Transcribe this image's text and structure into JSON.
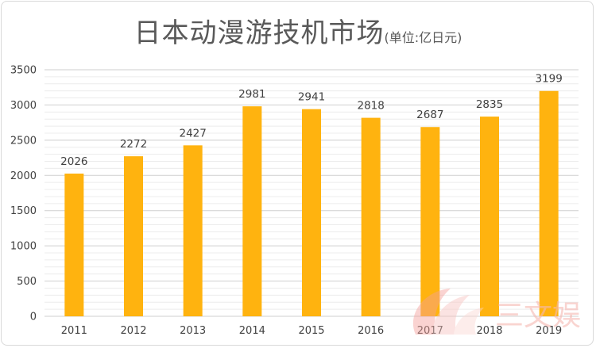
{
  "chart_data": {
    "type": "bar",
    "title": "日本动漫游技机市场",
    "unit_label": "(单位:亿日元)",
    "categories": [
      "2011",
      "2012",
      "2013",
      "2014",
      "2015",
      "2016",
      "2017",
      "2018",
      "2019"
    ],
    "values": [
      2026,
      2272,
      2427,
      2981,
      2941,
      2818,
      2687,
      2835,
      3199
    ],
    "data_labels": [
      "2026",
      "2272",
      "2427",
      "2981",
      "2941",
      "2818",
      "2687",
      "2835",
      "3199"
    ],
    "ylim": [
      0,
      3500
    ],
    "yticks": [
      0,
      500,
      1000,
      1500,
      2000,
      2500,
      3000,
      3500
    ],
    "ytick_labels": [
      "0",
      "500",
      "1000",
      "1500",
      "2000",
      "2500",
      "3000",
      "3500"
    ],
    "xlabel": "",
    "ylabel": "",
    "grid": true,
    "legend": "none",
    "colors": {
      "bar": "#FFB30F",
      "grid": "#d9d9d9",
      "text": "#404040",
      "title": "#595959"
    }
  },
  "watermark": {
    "text": "三文娱",
    "color": "#f6b8b2"
  }
}
